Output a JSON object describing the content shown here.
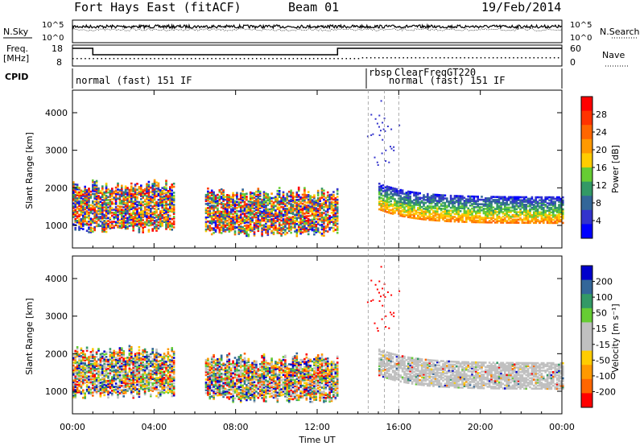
{
  "header": {
    "station": "Fort Hays East (fitACF)",
    "beam": "Beam 01",
    "date": "19/Feb/2014"
  },
  "noise_panel": {
    "left_label": "N.Sky",
    "right_label": "N.Search",
    "tick_top": "10^5",
    "tick_bottom": "10^0"
  },
  "freq_panel": {
    "left_label_line1": "Freq.",
    "left_label_line2": "[MHz]",
    "right_label": "Nave",
    "left_ticks": [
      "18",
      "8"
    ],
    "right_ticks": [
      "60",
      "0"
    ],
    "freq_series": [
      {
        "t": 0.0,
        "f": 17
      },
      {
        "t": 1.0,
        "f": 13
      },
      {
        "t": 13.0,
        "f": 17
      },
      {
        "t": 24.0,
        "f": 17
      }
    ]
  },
  "cpid_panel": {
    "label": "CPID",
    "programs": [
      {
        "name": "normal (fast) 151 IF",
        "start": 0.0
      },
      {
        "name": "rbsp",
        "start": 14.5
      },
      {
        "name": "ClearFreqGT220",
        "start": 15.3
      },
      {
        "name": "normal (fast) 151 IF",
        "start": 16.0
      }
    ]
  },
  "power_panel": {
    "ylabel": "Slant Range [km]",
    "colorbar_label": "Power [dB]",
    "colorbar_ticks": [
      "28",
      "24",
      "20",
      "16",
      "12",
      "8",
      "4"
    ],
    "colorbar_colors": [
      "#ff0000",
      "#ff3300",
      "#ff6600",
      "#ff9900",
      "#ffcc00",
      "#66cc33",
      "#339966",
      "#336699",
      "#3333cc",
      "#0000ff"
    ]
  },
  "velocity_panel": {
    "ylabel": "Slant Range [km]",
    "colorbar_label": "Velocity [m s⁻¹]",
    "colorbar_ticks": [
      "200",
      "100",
      "50",
      "15",
      "-15",
      "-50",
      "-100",
      "-200"
    ],
    "colorbar_colors": [
      "#0000cc",
      "#336699",
      "#339966",
      "#66cc33",
      "#c0c0c0",
      "#c0c0c0",
      "#ffcc00",
      "#ff9900",
      "#ff6600",
      "#ff0000"
    ],
    "ground_scatter_color": "#c0c0c0"
  },
  "chart_data": {
    "type": "heatmap",
    "xlabel": "Time UT",
    "x_ticks": [
      "00:00",
      "04:00",
      "08:00",
      "12:00",
      "16:00",
      "20:00",
      "00:00"
    ],
    "xlim": [
      0,
      24
    ],
    "y_ticks": [
      "1000",
      "2000",
      "3000",
      "4000"
    ],
    "ylim": [
      400,
      4600
    ],
    "power_regions": [
      {
        "t0": 0.0,
        "t1": 5.0,
        "r0": 800,
        "r1": 2200,
        "level": "mixed-high"
      },
      {
        "t0": 6.5,
        "t1": 13.0,
        "r0": 700,
        "r1": 2000,
        "level": "mixed-high"
      },
      {
        "t0": 15.0,
        "t1": 24.0,
        "r0": 1000,
        "r1": 2000,
        "level": "band"
      }
    ],
    "velocity_regions": [
      {
        "t0": 0.0,
        "t1": 5.0,
        "r0": 800,
        "r1": 2200,
        "level": "mixed"
      },
      {
        "t0": 6.5,
        "t1": 13.0,
        "r0": 700,
        "r1": 2000,
        "level": "mixed"
      },
      {
        "t0": 15.0,
        "t1": 24.0,
        "r0": 1000,
        "r1": 2000,
        "level": "ground"
      }
    ]
  }
}
